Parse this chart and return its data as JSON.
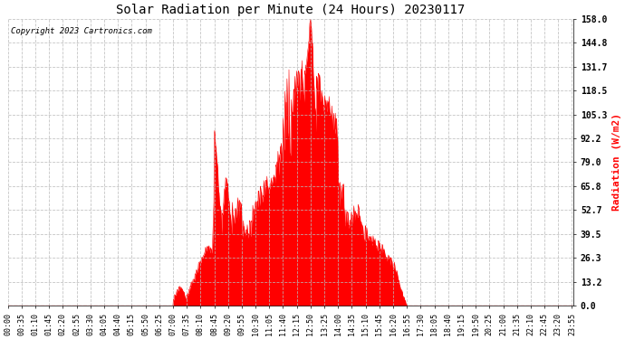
{
  "title": "Solar Radiation per Minute (24 Hours) 20230117",
  "copyright_text": "Copyright 2023 Cartronics.com",
  "ylabel": "Radiation (W/m2)",
  "ylabel_color": "#ff0000",
  "fill_color": "#ff0000",
  "line_color": "#ff0000",
  "background_color": "#ffffff",
  "grid_color": "#bbbbbb",
  "yticks": [
    0.0,
    13.2,
    26.3,
    39.5,
    52.7,
    65.8,
    79.0,
    92.2,
    105.3,
    118.5,
    131.7,
    144.8,
    158.0
  ],
  "ymin": 0.0,
  "ymax": 158.0,
  "total_minutes": 1440,
  "x_tick_interval": 35,
  "copyright_fontsize": 6.5,
  "title_fontsize": 10,
  "tick_fontsize": 6,
  "ylabel_fontsize": 8
}
